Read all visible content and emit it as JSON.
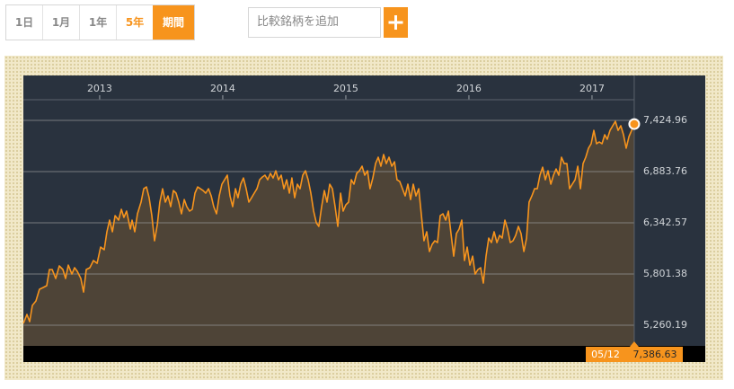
{
  "toolbar": {
    "periods": [
      "1日",
      "1月",
      "1年",
      "5年",
      "期間"
    ],
    "compare_placeholder": "比較銘柄を追加"
  },
  "chart_data": {
    "type": "area",
    "color": "#f7941d",
    "grid": true,
    "xlim": [
      2012.38,
      2017.92
    ],
    "xticks": [
      2013,
      2014,
      2015,
      2016,
      2017
    ],
    "ylim": [
      5042,
      7900
    ],
    "yticks": [
      {
        "value": 5260.19,
        "label": "5,260.19"
      },
      {
        "value": 5801.38,
        "label": "5,801.38"
      },
      {
        "value": 6342.57,
        "label": "6,342.57"
      },
      {
        "value": 6883.76,
        "label": "6,883.76"
      },
      {
        "value": 7424.96,
        "label": "7,424.96"
      }
    ],
    "x": [
      2012.38,
      2012.409,
      2012.431,
      2012.453,
      2012.482,
      2012.511,
      2012.541,
      2012.57,
      2012.592,
      2012.614,
      2012.643,
      2012.672,
      2012.701,
      2012.723,
      2012.745,
      2012.774,
      2012.796,
      2012.818,
      2012.847,
      2012.869,
      2012.891,
      2012.92,
      2012.949,
      2012.979,
      2013.008,
      2013.037,
      2013.059,
      2013.081,
      2013.103,
      2013.125,
      2013.154,
      2013.176,
      2013.197,
      2013.219,
      2013.249,
      2013.263,
      2013.285,
      2013.307,
      2013.336,
      2013.358,
      2013.38,
      2013.402,
      2013.424,
      2013.446,
      2013.468,
      2013.489,
      2013.511,
      2013.533,
      2013.555,
      2013.577,
      2013.599,
      2013.621,
      2013.643,
      2013.665,
      2013.687,
      2013.708,
      2013.73,
      2013.752,
      2013.774,
      2013.796,
      2013.818,
      2013.84,
      2013.862,
      2013.884,
      2013.906,
      2013.927,
      2013.949,
      2013.971,
      2013.993,
      2014.015,
      2014.037,
      2014.059,
      2014.081,
      2014.103,
      2014.124,
      2014.146,
      2014.168,
      2014.19,
      2014.212,
      2014.234,
      2014.256,
      2014.278,
      2014.3,
      2014.322,
      2014.343,
      2014.365,
      2014.387,
      2014.409,
      2014.431,
      2014.453,
      2014.475,
      2014.497,
      2014.519,
      2014.541,
      2014.562,
      2014.584,
      2014.606,
      2014.628,
      2014.65,
      2014.672,
      2014.694,
      2014.716,
      2014.738,
      2014.76,
      2014.781,
      2014.803,
      2014.825,
      2014.847,
      2014.869,
      2014.891,
      2014.913,
      2014.935,
      2014.957,
      2014.978,
      2015.0,
      2015.022,
      2015.044,
      2015.066,
      2015.088,
      2015.11,
      2015.132,
      2015.154,
      2015.176,
      2015.197,
      2015.219,
      2015.241,
      2015.263,
      2015.285,
      2015.307,
      2015.329,
      2015.351,
      2015.373,
      2015.395,
      2015.416,
      2015.438,
      2015.46,
      2015.482,
      2015.504,
      2015.526,
      2015.548,
      2015.57,
      2015.592,
      2015.614,
      2015.635,
      2015.657,
      2015.679,
      2015.701,
      2015.723,
      2015.745,
      2015.767,
      2015.789,
      2015.811,
      2015.833,
      2015.854,
      2015.876,
      2015.898,
      2015.92,
      2015.942,
      2015.964,
      2015.986,
      2016.008,
      2016.03,
      2016.051,
      2016.073,
      2016.095,
      2016.117,
      2016.139,
      2016.161,
      2016.183,
      2016.205,
      2016.227,
      2016.249,
      2016.27,
      2016.292,
      2016.314,
      2016.336,
      2016.358,
      2016.38,
      2016.402,
      2016.424,
      2016.446,
      2016.468,
      2016.489,
      2016.511,
      2016.533,
      2016.555,
      2016.577,
      2016.599,
      2016.621,
      2016.643,
      2016.665,
      2016.687,
      2016.708,
      2016.73,
      2016.752,
      2016.774,
      2016.796,
      2016.818,
      2016.84,
      2016.862,
      2016.884,
      2016.906,
      2016.927,
      2016.949,
      2016.971,
      2016.993,
      2017.015,
      2017.037,
      2017.059,
      2017.081,
      2017.103,
      2017.124,
      2017.146,
      2017.168,
      2017.19,
      2017.212,
      2017.234,
      2017.256,
      2017.278,
      2017.3,
      2017.322,
      2017.343
    ],
    "values": [
      5279,
      5374,
      5298,
      5469,
      5517,
      5640,
      5659,
      5678,
      5849,
      5849,
      5754,
      5887,
      5849,
      5754,
      5896,
      5801,
      5868,
      5830,
      5754,
      5611,
      5849,
      5868,
      5944,
      5915,
      6086,
      6058,
      6248,
      6371,
      6248,
      6419,
      6371,
      6485,
      6400,
      6466,
      6276,
      6371,
      6248,
      6438,
      6561,
      6703,
      6722,
      6608,
      6419,
      6153,
      6324,
      6561,
      6703,
      6561,
      6627,
      6514,
      6684,
      6656,
      6561,
      6438,
      6589,
      6514,
      6466,
      6485,
      6656,
      6722,
      6703,
      6684,
      6656,
      6703,
      6627,
      6514,
      6438,
      6627,
      6751,
      6798,
      6846,
      6627,
      6514,
      6703,
      6608,
      6751,
      6817,
      6703,
      6561,
      6608,
      6656,
      6703,
      6798,
      6827,
      6846,
      6798,
      6865,
      6817,
      6893,
      6798,
      6846,
      6703,
      6798,
      6656,
      6817,
      6608,
      6751,
      6703,
      6846,
      6893,
      6798,
      6656,
      6466,
      6343,
      6305,
      6514,
      6684,
      6561,
      6751,
      6703,
      6514,
      6305,
      6656,
      6466,
      6532,
      6561,
      6798,
      6751,
      6865,
      6893,
      6941,
      6846,
      6893,
      6703,
      6817,
      6969,
      7036,
      6941,
      7064,
      6969,
      7036,
      6941,
      6988,
      6798,
      6779,
      6703,
      6627,
      6751,
      6589,
      6751,
      6627,
      6703,
      6419,
      6153,
      6248,
      6039,
      6115,
      6153,
      6134,
      6419,
      6438,
      6371,
      6466,
      6229,
      5991,
      6229,
      6276,
      6371,
      5944,
      6086,
      5896,
      5991,
      5801,
      5849,
      5868,
      5706,
      5991,
      6181,
      6134,
      6248,
      6134,
      6210,
      6181,
      6371,
      6276,
      6134,
      6153,
      6210,
      6305,
      6229,
      6039,
      6181,
      6561,
      6627,
      6703,
      6703,
      6846,
      6931,
      6798,
      6893,
      6751,
      6846,
      6912,
      6846,
      7036,
      6969,
      6969,
      6703,
      6751,
      6798,
      6941,
      6703,
      6969,
      7036,
      7131,
      7178,
      7320,
      7178,
      7197,
      7178,
      7273,
      7226,
      7320,
      7368,
      7415,
      7320,
      7368,
      7273,
      7131,
      7254,
      7320,
      7386.63
    ],
    "last_point": {
      "date": "05/12",
      "label": "7,386.63"
    }
  }
}
